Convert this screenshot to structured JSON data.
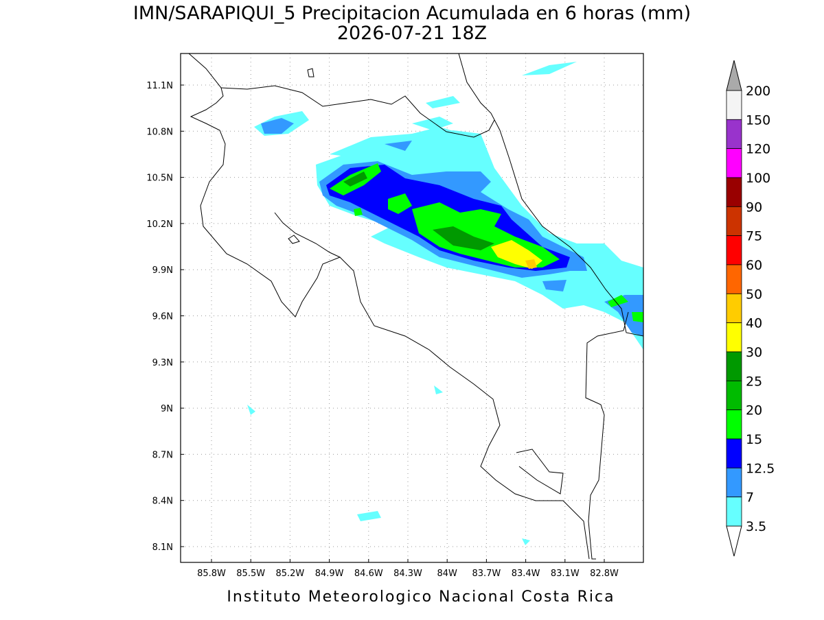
{
  "title": "IMN/SARAPIQUI_5 Precipitacion Acumulada en 6 horas (mm)",
  "subtitle": "2026-07-21 18Z",
  "footer": "Instituto Meteorologico Nacional Costa Rica",
  "lon_labels": [
    "85.8W",
    "85.5W",
    "85.2W",
    "84.9W",
    "84.6W",
    "84.3W",
    "84W",
    "83.7W",
    "83.4W",
    "83.1W",
    "82.8W"
  ],
  "lat_labels": [
    "11.1N",
    "10.8N",
    "10.5N",
    "10.2N",
    "9.9N",
    "9.6N",
    "9.3N",
    "9N",
    "8.7N",
    "8.4N",
    "8.1N"
  ],
  "legend": {
    "levels": [
      "200",
      "150",
      "120",
      "100",
      "90",
      "75",
      "60",
      "50",
      "40",
      "30",
      "25",
      "20",
      "15",
      "12.5",
      "7",
      "3.5"
    ],
    "colors": [
      "#f4f4f4",
      "#9933cc",
      "#ff00ff",
      "#990000",
      "#cc3300",
      "#ff0000",
      "#ff6600",
      "#ffcc00",
      "#ffff00",
      "#009900",
      "#00bb00",
      "#00ff00",
      "#0000ff",
      "#3399ff",
      "#66ffff"
    ],
    "over_color": "#aaaaaa",
    "under_color": "#ffffff"
  }
}
